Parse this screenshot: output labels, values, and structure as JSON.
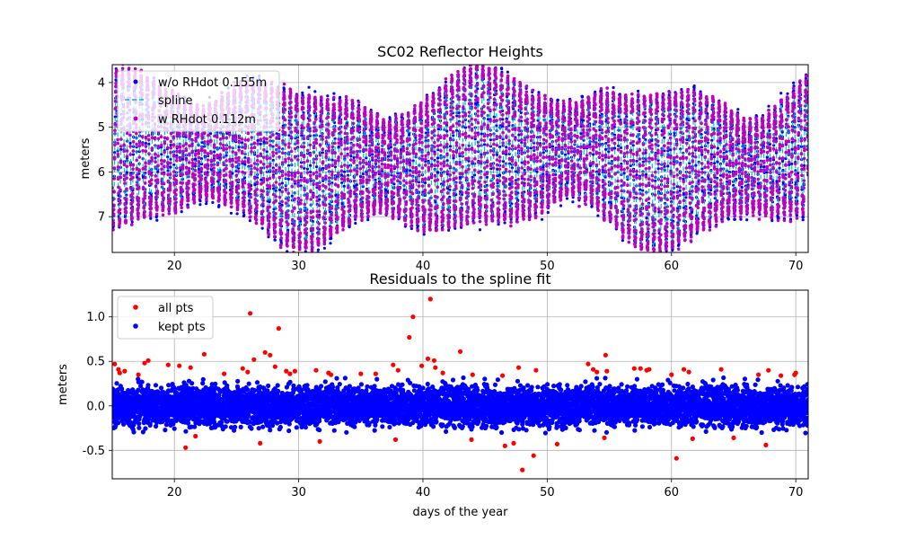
{
  "chart_data": [
    {
      "type": "scatter",
      "title": "SC02 Reflector Heights",
      "xlabel": "",
      "ylabel": "meters",
      "xlim": [
        15,
        71
      ],
      "ylim": [
        7.8,
        3.6
      ],
      "y_inverted": true,
      "grid": true,
      "legend_position": "top-left",
      "xticks": [
        "20",
        "30",
        "40",
        "50",
        "60",
        "70"
      ],
      "yticks": [
        "4",
        "5",
        "6",
        "7"
      ],
      "series": [
        {
          "name": "w/o RHdot 0.155m",
          "marker": "dot",
          "color": "#0000ff"
        },
        {
          "name": "spline",
          "marker": "dashed-line",
          "color": "#00bfbf"
        },
        {
          "name": "w RHdot 0.112m",
          "marker": "dot",
          "color": "#bf00bf"
        }
      ],
      "signal": {
        "period_days": 0.5,
        "range_min": 3.9,
        "range_max": 7.6,
        "mean_level": 5.7
      }
    },
    {
      "type": "scatter",
      "title": "Residuals to the spline fit",
      "xlabel": "days of the year",
      "ylabel": "meters",
      "xlim": [
        15,
        71
      ],
      "ylim": [
        -0.82,
        1.3
      ],
      "grid": true,
      "legend_position": "top-left",
      "xticks": [
        "20",
        "30",
        "40",
        "50",
        "60",
        "70"
      ],
      "yticks": [
        "1.0",
        "0.5",
        "0.0",
        "-0.5"
      ],
      "series": [
        {
          "name": "all pts",
          "color": "#ff0000",
          "x": [
            15.2,
            15.5,
            15.6,
            16.0,
            17.1,
            17.6,
            17.9,
            19.5,
            20.4,
            20.9,
            21.3,
            21.7,
            22.4,
            24.0,
            25.5,
            25.9,
            26.1,
            26.4,
            26.9,
            27.3,
            27.7,
            28.1,
            28.4,
            29.0,
            29.3,
            29.7,
            31.4,
            31.7,
            32.4,
            32.6,
            35.0,
            36.2,
            37.6,
            37.8,
            38.0,
            38.9,
            39.2,
            39.9,
            40.4,
            40.6,
            40.9,
            41.0,
            41.6,
            43.0,
            43.9,
            44.0,
            46.4,
            46.6,
            47.3,
            47.7,
            48.0,
            48.9,
            49.1,
            50.8,
            53.3,
            53.7,
            54.0,
            54.6,
            54.7,
            54.8,
            57.0,
            57.5,
            58.0,
            58.2,
            60.0,
            60.4,
            61.0,
            61.4,
            61.7,
            64.0,
            65.0,
            67.0,
            67.6,
            67.8,
            68.8,
            69.9,
            70.0
          ],
          "y": [
            0.47,
            0.41,
            0.37,
            0.39,
            0.35,
            0.48,
            0.51,
            0.46,
            0.45,
            -0.47,
            0.43,
            -0.34,
            0.58,
            0.36,
            0.42,
            0.38,
            1.04,
            0.52,
            -0.42,
            0.6,
            0.57,
            0.44,
            0.87,
            0.39,
            0.36,
            0.39,
            0.4,
            -0.4,
            0.37,
            0.35,
            0.36,
            0.36,
            0.46,
            -0.38,
            0.4,
            0.77,
            1.0,
            0.45,
            0.53,
            1.2,
            0.51,
            0.43,
            0.37,
            0.61,
            -0.38,
            0.35,
            0.34,
            -0.45,
            -0.42,
            0.43,
            -0.72,
            -0.56,
            0.4,
            -0.43,
            0.47,
            0.41,
            0.38,
            -0.36,
            0.57,
            0.39,
            0.42,
            0.42,
            0.4,
            0.41,
            0.35,
            -0.59,
            0.41,
            0.38,
            -0.37,
            0.41,
            -0.36,
            0.35,
            -0.44,
            0.4,
            0.34,
            0.35,
            0.37
          ]
        },
        {
          "name": "kept pts",
          "color": "#0000ff",
          "spread": [
            -0.32,
            0.32
          ]
        }
      ]
    }
  ]
}
